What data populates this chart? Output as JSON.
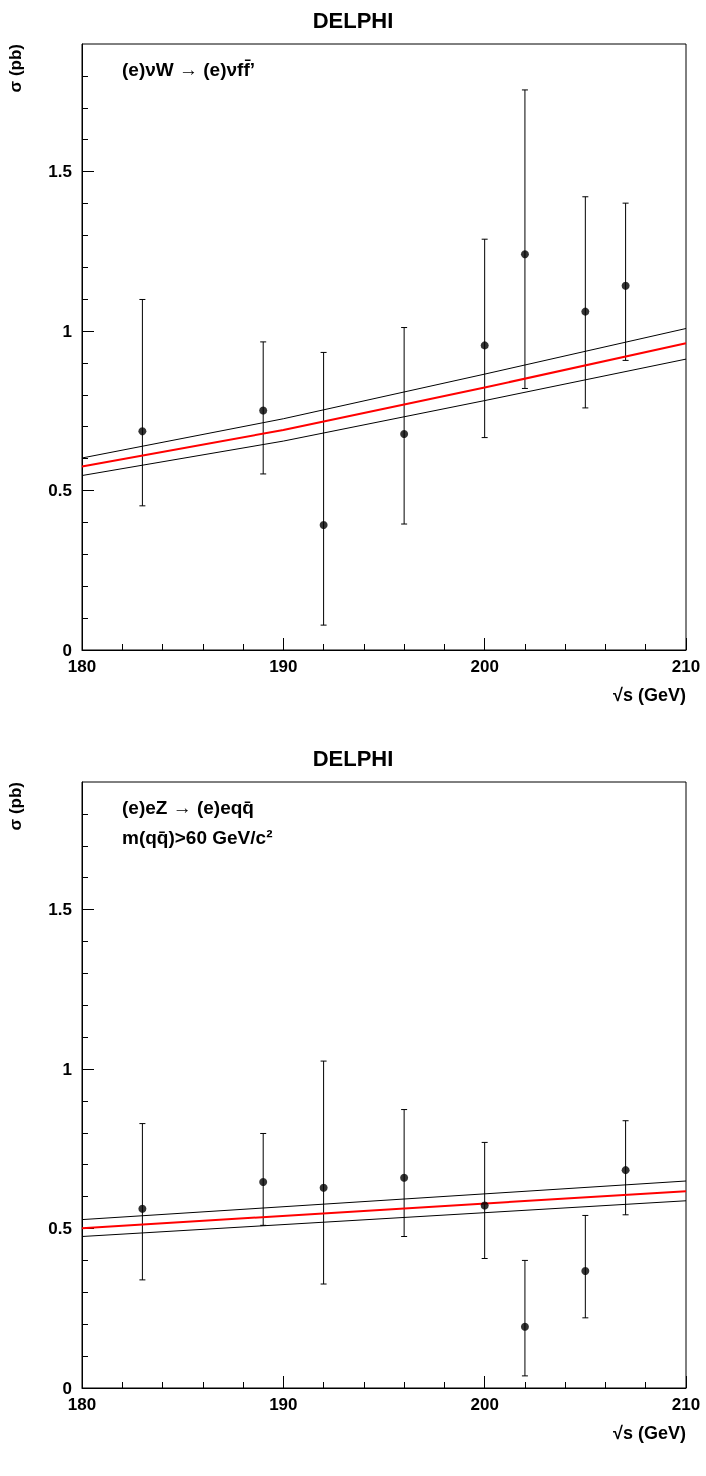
{
  "chart_data": [
    {
      "type": "scatter",
      "title": "DELPHI",
      "xlabel": "√s (GeV)",
      "ylabel": "σ (pb)",
      "annotations": [
        "(e)νW → (e)νff̄’"
      ],
      "xlim": [
        180,
        210
      ],
      "xticks": [
        180,
        190,
        200,
        210
      ],
      "ylim": [
        0,
        1.9
      ],
      "yticks": [
        0,
        0.5,
        1,
        1.5
      ],
      "series": [
        {
          "marker": "circle",
          "color": "#000000",
          "x": [
            183,
            189,
            192,
            196,
            200,
            202,
            205,
            207
          ],
          "values": [
            0.686,
            0.751,
            0.392,
            0.677,
            0.955,
            1.241,
            1.061,
            1.142
          ],
          "errors": [
            [
              0.452,
              1.099
            ],
            [
              0.552,
              0.966
            ],
            [
              0.078,
              0.933
            ],
            [
              0.395,
              1.011
            ],
            [
              0.666,
              1.288
            ],
            [
              0.82,
              1.756
            ],
            [
              0.759,
              1.421
            ],
            [
              0.908,
              1.401
            ]
          ]
        },
        {
          "type": "line",
          "color": "#000000",
          "x": [
            180,
            190,
            200,
            210
          ],
          "values": [
            0.602,
            0.725,
            0.865,
            1.008
          ]
        },
        {
          "type": "line",
          "color": "#000000",
          "x": [
            180,
            190,
            200,
            210
          ],
          "values": [
            0.547,
            0.655,
            0.782,
            0.912
          ]
        },
        {
          "type": "line",
          "color": "#ff0000",
          "x": [
            180,
            190,
            200,
            210
          ],
          "values": [
            0.575,
            0.69,
            0.823,
            0.962
          ]
        }
      ]
    },
    {
      "type": "scatter",
      "title": "DELPHI",
      "xlabel": "√s (GeV)",
      "ylabel": "σ (pb)",
      "annotations": [
        "(e)eZ → (e)eqq̄",
        "m(qq̄)>60 GeV/c²"
      ],
      "xlim": [
        180,
        210
      ],
      "xticks": [
        180,
        190,
        200,
        210
      ],
      "ylim": [
        0,
        1.9
      ],
      "yticks": [
        0,
        0.5,
        1,
        1.5
      ],
      "series": [
        {
          "marker": "circle",
          "color": "#000000",
          "x": [
            183,
            189,
            192,
            196,
            200,
            202,
            205,
            207
          ],
          "values": [
            0.562,
            0.646,
            0.628,
            0.659,
            0.572,
            0.192,
            0.367,
            0.683
          ],
          "errors": [
            [
              0.339,
              0.829
            ],
            [
              0.51,
              0.798
            ],
            [
              0.326,
              1.025
            ],
            [
              0.475,
              0.873
            ],
            [
              0.406,
              0.77
            ],
            [
              0.038,
              0.4
            ],
            [
              0.22,
              0.541
            ],
            [
              0.543,
              0.838
            ]
          ]
        },
        {
          "type": "line",
          "color": "#000000",
          "x": [
            180,
            210
          ],
          "values": [
            0.528,
            0.649
          ]
        },
        {
          "type": "line",
          "color": "#000000",
          "x": [
            180,
            210
          ],
          "values": [
            0.475,
            0.587
          ]
        },
        {
          "type": "line",
          "color": "#ff0000",
          "x": [
            180,
            210
          ],
          "values": [
            0.501,
            0.617
          ]
        }
      ]
    }
  ]
}
